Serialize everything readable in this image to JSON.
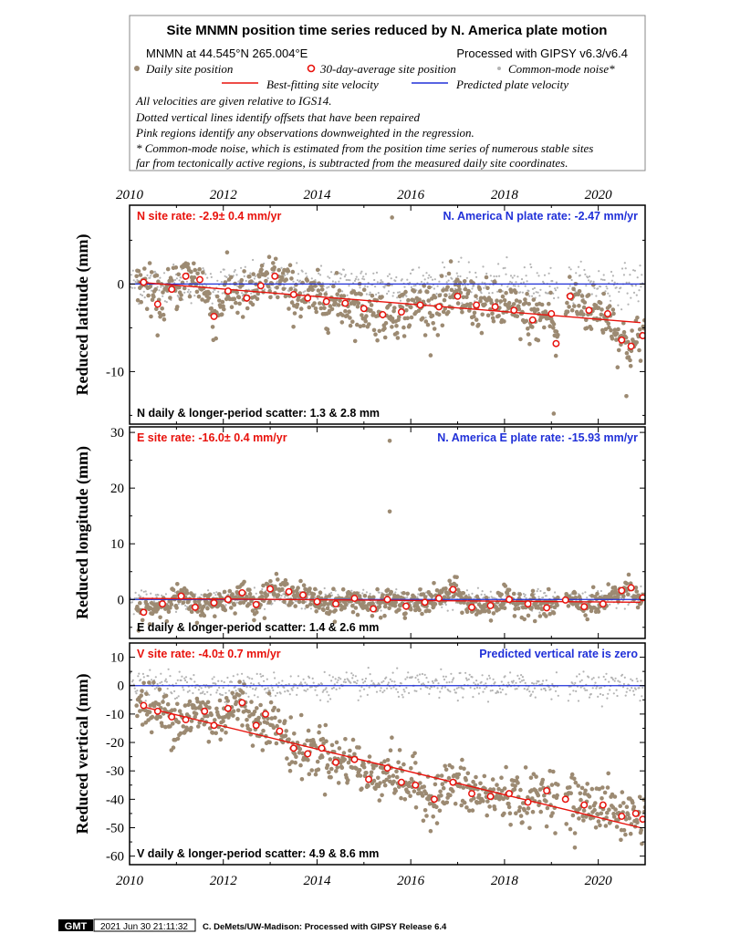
{
  "header": {
    "title": "Site MNMN position time series reduced by N. America plate motion",
    "site_location": "MNMN at 44.545°N 265.004°E",
    "processing": "Processed with GIPSY v6.3/v6.4",
    "legend": {
      "daily": "Daily site position",
      "avg30": "30-day-average site position",
      "cmn": "Common-mode noise*",
      "best_fit": "Best-fitting site velocity",
      "predicted": "Predicted plate velocity"
    },
    "notes": [
      "All velocities are given relative to IGS14.",
      "Dotted vertical lines identify offsets that have been repaired",
      "Pink regions identify any observations downweighted in the regression.",
      "* Common-mode noise, which is estimated from the position time series of numerous stable sites",
      "far from tectonically active regions, is subtracted from the measured daily site coordinates."
    ]
  },
  "colors": {
    "daily": "#9c8a72",
    "avg30_edge": "#e8120c",
    "cmn": "#b4b4b4",
    "best_fit": "#e8120c",
    "predicted": "#2030d8",
    "rate_label": "#e8120c",
    "plate_label": "#2030d8"
  },
  "chart_data": [
    {
      "type": "scatter",
      "component": "N",
      "ylabel": "Reduced latitude (mm)",
      "xlim": [
        2010,
        2021
      ],
      "ylim": [
        -16,
        9
      ],
      "yticks": [
        -10,
        0
      ],
      "xticks": [
        2010,
        2012,
        2014,
        2016,
        2018,
        2020
      ],
      "site_rate_label": "N site rate:  -2.9± 0.4 mm/yr",
      "plate_rate_label": "N. America N plate rate: -2.47 mm/yr",
      "scatter_label": "N daily & longer-period scatter:   1.3 &   2.8 mm",
      "best_fit_line": [
        [
          2010.2,
          0.2
        ],
        [
          2020.9,
          -4.4
        ]
      ],
      "predicted_line": [
        [
          2010,
          0
        ],
        [
          2021,
          0
        ]
      ],
      "series_30day": [
        [
          2010.3,
          0.2
        ],
        [
          2010.6,
          -2.3
        ],
        [
          2010.9,
          -0.6
        ],
        [
          2011.2,
          0.9
        ],
        [
          2011.5,
          0.5
        ],
        [
          2011.8,
          -3.7
        ],
        [
          2012.1,
          -0.8
        ],
        [
          2012.5,
          -1.6
        ],
        [
          2012.8,
          -0.2
        ],
        [
          2013.1,
          0.9
        ],
        [
          2013.5,
          -1.2
        ],
        [
          2013.8,
          -1.6
        ],
        [
          2014.2,
          -2.0
        ],
        [
          2014.6,
          -2.2
        ],
        [
          2015.0,
          -2.8
        ],
        [
          2015.4,
          -3.5
        ],
        [
          2015.8,
          -3.2
        ],
        [
          2016.2,
          -2.4
        ],
        [
          2016.6,
          -2.6
        ],
        [
          2017.0,
          -1.4
        ],
        [
          2017.4,
          -2.4
        ],
        [
          2017.8,
          -2.6
        ],
        [
          2018.2,
          -3.0
        ],
        [
          2018.6,
          -4.1
        ],
        [
          2019.0,
          -3.4
        ],
        [
          2019.1,
          -6.8
        ],
        [
          2019.4,
          -1.4
        ],
        [
          2019.8,
          -3.0
        ],
        [
          2020.2,
          -3.4
        ],
        [
          2020.5,
          -6.4
        ],
        [
          2020.7,
          -7.1
        ],
        [
          2020.95,
          -5.9
        ]
      ],
      "outliers": [
        [
          2015.6,
          7.6
        ],
        [
          2019.05,
          -14.8
        ],
        [
          2020.6,
          -12.8
        ]
      ]
    },
    {
      "type": "scatter",
      "component": "E",
      "ylabel": "Reduced longitude (mm)",
      "xlim": [
        2010,
        2021
      ],
      "ylim": [
        -7,
        31
      ],
      "yticks": [
        0,
        10,
        20,
        30
      ],
      "xticks": [
        2010,
        2012,
        2014,
        2016,
        2018,
        2020
      ],
      "site_rate_label": "E site rate:  -16.0± 0.4 mm/yr",
      "plate_rate_label": "N. America E plate rate: -15.93 mm/yr",
      "scatter_label": "E daily & longer-period scatter:   1.4 &   2.6 mm",
      "best_fit_line": [
        [
          2010.2,
          0.2
        ],
        [
          2020.9,
          -0.5
        ]
      ],
      "predicted_line": [
        [
          2010,
          0
        ],
        [
          2021,
          0
        ]
      ],
      "series_30day": [
        [
          2010.3,
          -2.3
        ],
        [
          2010.7,
          -0.8
        ],
        [
          2011.1,
          0.6
        ],
        [
          2011.4,
          -1.4
        ],
        [
          2011.8,
          -0.6
        ],
        [
          2012.1,
          0.0
        ],
        [
          2012.4,
          1.2
        ],
        [
          2012.7,
          -0.9
        ],
        [
          2013.0,
          1.9
        ],
        [
          2013.4,
          1.4
        ],
        [
          2013.7,
          0.8
        ],
        [
          2014.0,
          -0.4
        ],
        [
          2014.4,
          -0.8
        ],
        [
          2014.8,
          0.2
        ],
        [
          2015.2,
          -1.7
        ],
        [
          2015.5,
          0.0
        ],
        [
          2015.9,
          -1.2
        ],
        [
          2016.3,
          -0.5
        ],
        [
          2016.6,
          0.2
        ],
        [
          2016.9,
          1.8
        ],
        [
          2017.3,
          -1.4
        ],
        [
          2017.7,
          -1.1
        ],
        [
          2018.1,
          0.0
        ],
        [
          2018.5,
          -0.8
        ],
        [
          2018.9,
          -1.5
        ],
        [
          2019.3,
          -0.1
        ],
        [
          2019.7,
          -1.3
        ],
        [
          2020.1,
          -0.8
        ],
        [
          2020.5,
          1.6
        ],
        [
          2020.7,
          2.1
        ],
        [
          2020.95,
          0.3
        ]
      ],
      "outliers": [
        [
          2015.55,
          28.5
        ],
        [
          2015.55,
          15.8
        ]
      ]
    },
    {
      "type": "scatter",
      "component": "V",
      "ylabel": "Reduced vertical (mm)",
      "xlim": [
        2010,
        2021
      ],
      "ylim": [
        -63,
        15
      ],
      "yticks": [
        -60,
        -50,
        -40,
        -30,
        -20,
        -10,
        0,
        10
      ],
      "xticks": [
        2010,
        2012,
        2014,
        2016,
        2018,
        2020
      ],
      "site_rate_label": "V site rate:  -4.0± 0.7 mm/yr",
      "plate_rate_label": "Predicted vertical rate is zero",
      "scatter_label": "V daily & longer-period scatter:   4.9 &   8.6 mm",
      "best_fit_line": [
        [
          2010.3,
          -7.5
        ],
        [
          2020.9,
          -50
        ]
      ],
      "predicted_line": [
        [
          2010,
          0
        ],
        [
          2021,
          0
        ]
      ],
      "series_30day": [
        [
          2010.3,
          -7
        ],
        [
          2010.6,
          -9
        ],
        [
          2010.9,
          -11
        ],
        [
          2011.2,
          -12
        ],
        [
          2011.6,
          -9
        ],
        [
          2011.8,
          -14
        ],
        [
          2012.1,
          -8
        ],
        [
          2012.4,
          -6
        ],
        [
          2012.7,
          -14
        ],
        [
          2012.9,
          -10
        ],
        [
          2013.2,
          -16
        ],
        [
          2013.5,
          -22
        ],
        [
          2013.8,
          -24
        ],
        [
          2014.1,
          -22
        ],
        [
          2014.4,
          -27
        ],
        [
          2014.8,
          -26
        ],
        [
          2015.1,
          -33
        ],
        [
          2015.5,
          -29
        ],
        [
          2015.8,
          -34
        ],
        [
          2016.1,
          -35
        ],
        [
          2016.5,
          -40
        ],
        [
          2016.9,
          -34
        ],
        [
          2017.3,
          -38
        ],
        [
          2017.7,
          -39
        ],
        [
          2018.1,
          -38
        ],
        [
          2018.5,
          -41
        ],
        [
          2018.9,
          -37
        ],
        [
          2019.3,
          -40
        ],
        [
          2019.7,
          -42
        ],
        [
          2020.1,
          -42
        ],
        [
          2020.5,
          -46
        ],
        [
          2020.8,
          -45
        ],
        [
          2020.95,
          -47
        ]
      ],
      "outliers": [
        [
          2019.5,
          -57
        ]
      ]
    }
  ],
  "footer": {
    "logo": "GMT",
    "timestamp": "2021 Jun 30 21:11:32",
    "credit": "C. DeMets/UW-Madison: Processed with GIPSY Release 6.4"
  }
}
